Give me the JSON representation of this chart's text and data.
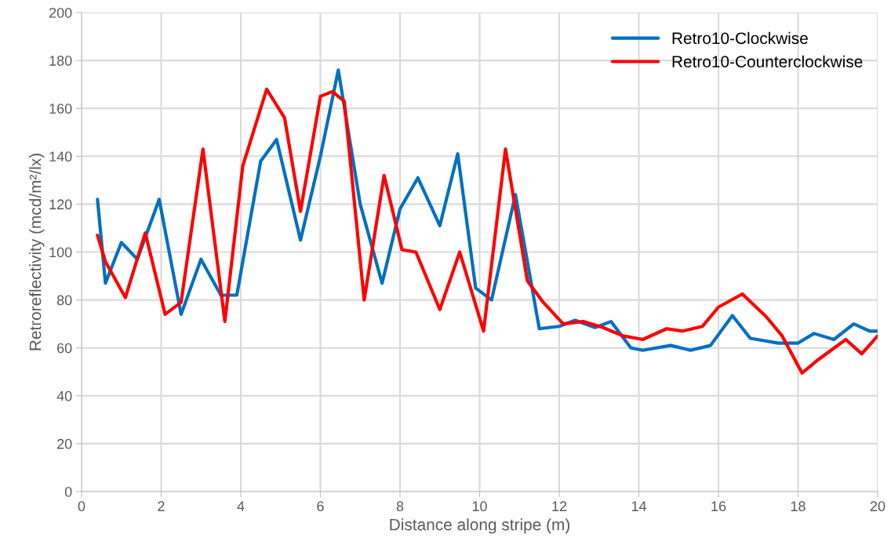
{
  "chart_data": {
    "type": "line",
    "xlabel": "Distance along stripe (m)",
    "ylabel": "Retroreflectivity (mcd/m²/lx)",
    "xlim": [
      0,
      20
    ],
    "ylim": [
      0,
      200
    ],
    "xticks": [
      0,
      2,
      4,
      6,
      8,
      10,
      12,
      14,
      16,
      18,
      20
    ],
    "yticks": [
      0,
      20,
      40,
      60,
      80,
      100,
      120,
      140,
      160,
      180,
      200
    ],
    "grid": true,
    "legend": "top right",
    "marker": "none",
    "line_style": "solid",
    "series": [
      {
        "name": "Retro10-Clockwise",
        "color": "#0070c0",
        "x": [
          0.4,
          0.6,
          1.0,
          1.4,
          1.95,
          2.5,
          3.0,
          3.5,
          3.9,
          4.5,
          4.9,
          5.5,
          6.0,
          6.45,
          7.0,
          7.55,
          8.0,
          8.45,
          9.0,
          9.45,
          9.9,
          10.3,
          10.9,
          11.5,
          12.0,
          12.4,
          12.9,
          13.3,
          13.8,
          14.1,
          14.8,
          15.3,
          15.8,
          16.35,
          16.8,
          17.5,
          18.0,
          18.4,
          18.9,
          19.4,
          19.8,
          20.0
        ],
        "values": [
          122,
          87,
          104,
          97,
          122,
          74,
          97,
          82,
          82,
          138,
          147,
          105,
          140,
          176,
          120,
          87,
          118,
          131,
          111,
          141,
          85,
          80,
          124,
          68,
          69,
          71.5,
          68.5,
          71,
          60,
          59,
          61,
          59,
          61,
          73.5,
          64,
          62,
          62,
          66,
          63.5,
          70,
          67,
          67
        ]
      },
      {
        "name": "Retro10-Counterclockwise",
        "color": "#ff0000",
        "x": [
          0.4,
          0.6,
          1.1,
          1.6,
          2.1,
          2.5,
          3.05,
          3.6,
          4.05,
          4.65,
          5.1,
          5.5,
          6.0,
          6.3,
          6.6,
          7.1,
          7.6,
          8.05,
          8.4,
          9.0,
          9.5,
          10.1,
          10.65,
          11.2,
          11.6,
          12.1,
          12.6,
          13.1,
          13.6,
          14.1,
          14.7,
          15.1,
          15.6,
          16.0,
          16.6,
          17.2,
          17.6,
          18.1,
          18.5,
          19.2,
          19.6,
          20.0
        ],
        "values": [
          107,
          96,
          81,
          108,
          74,
          79,
          143,
          71,
          136,
          168,
          156,
          117,
          165,
          167,
          163,
          80,
          132,
          101,
          100,
          76,
          100,
          67,
          143,
          88,
          79,
          70,
          71,
          68.5,
          65,
          63.5,
          68,
          67,
          69,
          77,
          82.5,
          73,
          65,
          49.5,
          55,
          63.5,
          57.5,
          65
        ]
      }
    ]
  }
}
